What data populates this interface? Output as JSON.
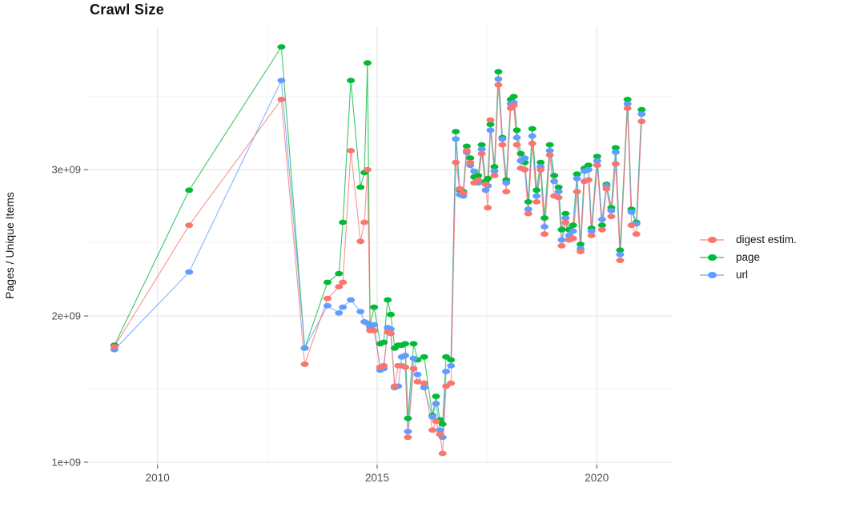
{
  "title": "Crawl Size",
  "y_axis_title": "Pages / Unique Items",
  "axes": {
    "x": {
      "tick_labels": [
        "2010",
        "2015",
        "2020"
      ],
      "tick_values": [
        2010,
        2015,
        2020
      ],
      "minor_breaks": [
        2012.5,
        2017.5
      ]
    },
    "y": {
      "tick_labels": [
        "1e+09",
        "2e+09",
        "3e+09"
      ],
      "tick_values": [
        1,
        2,
        3
      ],
      "minor_breaks": [
        1.5,
        2.5,
        3.5
      ]
    }
  },
  "legend": {
    "items": [
      {
        "label": "digest estim.",
        "color": "#F8766D"
      },
      {
        "label": "page",
        "color": "#00BA38"
      },
      {
        "label": "url",
        "color": "#619CFF"
      }
    ]
  },
  "colors": {
    "major_grid": "#e4e4e4",
    "minor_grid": "#f0f0f0",
    "tick": "#4d4d4d",
    "tick_text": "#4d4d4d"
  },
  "chart_data": {
    "type": "line",
    "title": "Crawl Size",
    "xlabel": "",
    "ylabel": "Pages / Unique Items",
    "legend_position": "right",
    "grid": true,
    "x_unit": "decimal_year",
    "values_unit": "billions_of_items",
    "xlim": [
      2008.4,
      2021.8
    ],
    "ylim_billions": [
      0.97,
      3.99
    ],
    "x": [
      2009.02,
      2010.72,
      2012.82,
      2013.35,
      2013.87,
      2014.13,
      2014.22,
      2014.4,
      2014.62,
      2014.71,
      2014.78,
      2014.84,
      2014.93,
      2015.07,
      2015.15,
      2015.24,
      2015.31,
      2015.4,
      2015.48,
      2015.56,
      2015.64,
      2015.7,
      2015.83,
      2015.92,
      2016.07,
      2016.26,
      2016.34,
      2016.43,
      2016.49,
      2016.57,
      2016.68,
      2016.79,
      2016.88,
      2016.96,
      2017.04,
      2017.12,
      2017.21,
      2017.3,
      2017.38,
      2017.47,
      2017.52,
      2017.58,
      2017.67,
      2017.76,
      2017.85,
      2017.94,
      2018.04,
      2018.11,
      2018.18,
      2018.27,
      2018.36,
      2018.44,
      2018.53,
      2018.63,
      2018.72,
      2018.81,
      2018.93,
      2019.03,
      2019.13,
      2019.2,
      2019.29,
      2019.37,
      2019.46,
      2019.55,
      2019.63,
      2019.72,
      2019.81,
      2019.88,
      2020.01,
      2020.12,
      2020.22,
      2020.33,
      2020.43,
      2020.53,
      2020.7,
      2020.79,
      2020.9,
      2021.02
    ],
    "series": [
      {
        "name": "digest estim.",
        "color": "#F8766D",
        "values": [
          1.79,
          2.62,
          3.48,
          1.67,
          2.12,
          2.2,
          2.23,
          3.13,
          2.51,
          2.64,
          3.0,
          1.9,
          1.9,
          1.65,
          1.66,
          1.89,
          1.88,
          1.52,
          1.66,
          1.66,
          1.65,
          1.17,
          1.64,
          1.55,
          1.54,
          1.22,
          1.28,
          1.19,
          1.06,
          1.52,
          1.54,
          3.05,
          2.87,
          2.84,
          3.13,
          3.05,
          2.91,
          2.93,
          3.11,
          2.9,
          2.74,
          3.34,
          2.96,
          3.58,
          3.17,
          2.85,
          3.42,
          3.44,
          3.17,
          3.01,
          3.0,
          2.7,
          3.18,
          2.78,
          3.0,
          2.56,
          3.1,
          2.82,
          2.81,
          2.48,
          2.64,
          2.52,
          2.53,
          2.85,
          2.44,
          2.92,
          2.93,
          2.55,
          3.03,
          2.59,
          2.87,
          2.68,
          3.04,
          2.38,
          3.42,
          2.62,
          2.56,
          3.33
        ]
      },
      {
        "name": "page",
        "color": "#00BA38",
        "values": [
          1.8,
          2.86,
          3.84,
          1.78,
          2.23,
          2.29,
          2.64,
          3.61,
          2.88,
          2.98,
          3.73,
          1.94,
          2.06,
          1.81,
          1.82,
          2.11,
          2.01,
          1.78,
          1.8,
          1.8,
          1.81,
          1.3,
          1.81,
          1.7,
          1.72,
          1.32,
          1.45,
          1.29,
          1.26,
          1.72,
          1.7,
          3.26,
          2.86,
          2.85,
          3.16,
          3.08,
          2.95,
          2.96,
          3.17,
          2.92,
          2.94,
          3.31,
          3.02,
          3.67,
          3.22,
          2.93,
          3.48,
          3.5,
          3.27,
          3.11,
          3.05,
          2.78,
          3.28,
          2.86,
          3.05,
          2.67,
          3.17,
          2.96,
          2.88,
          2.59,
          2.7,
          2.59,
          2.62,
          2.97,
          2.49,
          3.01,
          3.03,
          2.6,
          3.09,
          2.62,
          2.9,
          2.74,
          3.15,
          2.45,
          3.48,
          2.73,
          2.64,
          3.41
        ]
      },
      {
        "name": "url",
        "color": "#619CFF",
        "values": [
          1.77,
          2.3,
          3.61,
          1.78,
          2.07,
          2.02,
          2.06,
          2.11,
          2.03,
          1.96,
          1.95,
          1.92,
          1.94,
          1.63,
          1.64,
          1.92,
          1.91,
          1.51,
          1.52,
          1.72,
          1.73,
          1.21,
          1.71,
          1.6,
          1.51,
          1.31,
          1.4,
          1.22,
          1.17,
          1.62,
          1.66,
          3.21,
          2.83,
          2.82,
          3.12,
          3.03,
          2.99,
          2.91,
          3.14,
          2.86,
          2.89,
          3.27,
          2.99,
          3.62,
          3.21,
          2.91,
          3.45,
          3.46,
          3.22,
          3.06,
          3.08,
          2.73,
          3.23,
          2.82,
          3.02,
          2.61,
          3.13,
          2.92,
          2.85,
          2.52,
          2.67,
          2.55,
          2.58,
          2.94,
          2.46,
          2.99,
          3.0,
          2.58,
          3.06,
          2.66,
          2.89,
          2.72,
          3.12,
          2.42,
          3.45,
          2.71,
          2.63,
          3.38
        ]
      }
    ]
  }
}
